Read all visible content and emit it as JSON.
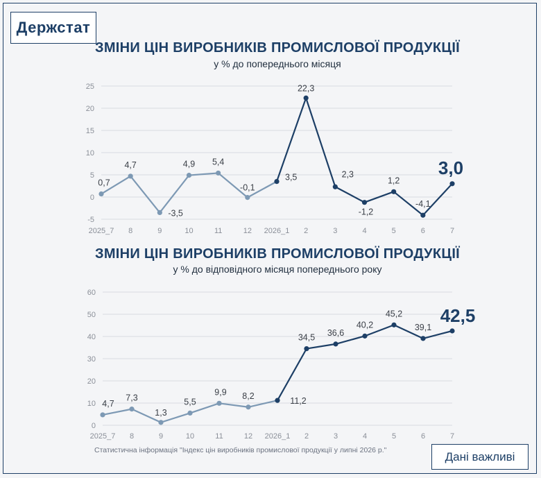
{
  "logo": {
    "text": "Держстат"
  },
  "colors": {
    "past": "#7d99b4",
    "current": "#1d3f66",
    "grid": "#d9dce1"
  },
  "footer": {
    "note": "Статистична інформація \"Індекс цін виробників промислової продукції у липні 2026 р.\"",
    "button_label": "Дані важливі"
  },
  "chart_data": [
    {
      "type": "line",
      "title": "ЗМІНИ ЦІН ВИРОБНИКІВ ПРОМИСЛОВОЇ ПРОДУКЦІЇ",
      "subtitle": "у % до попереднього місяця",
      "categories": [
        "2025_7",
        "8",
        "9",
        "10",
        "11",
        "12",
        "2026_1",
        "2",
        "3",
        "4",
        "5",
        "6",
        "7"
      ],
      "values": [
        0.7,
        4.7,
        -3.5,
        4.9,
        5.4,
        -0.1,
        3.5,
        22.3,
        2.3,
        -1.2,
        1.2,
        -4.1,
        3.0
      ],
      "labels": [
        "0,7",
        "4,7",
        "-3,5",
        "4,9",
        "5,4",
        "-0,1",
        "3,5",
        "22,3",
        "2,3",
        "-1,2",
        "1,2",
        "-4,1",
        "3,0"
      ],
      "yticks": [
        "-5",
        "0",
        "5",
        "10",
        "15",
        "20",
        "25"
      ],
      "ylim": [
        -5,
        25
      ],
      "grid": true,
      "highlight_from_index": 6,
      "xlabel": "",
      "ylabel": ""
    },
    {
      "type": "line",
      "title": "ЗМІНИ ЦІН ВИРОБНИКІВ ПРОМИСЛОВОЇ ПРОДУКЦІЇ",
      "subtitle": "у % до відповідного місяця попереднього року",
      "categories": [
        "2025_7",
        "8",
        "9",
        "10",
        "11",
        "12",
        "2026_1",
        "2",
        "3",
        "4",
        "5",
        "6",
        "7"
      ],
      "values": [
        4.7,
        7.3,
        1.3,
        5.5,
        9.9,
        8.2,
        11.2,
        34.5,
        36.6,
        40.2,
        45.2,
        39.1,
        42.5
      ],
      "labels": [
        "4,7",
        "7,3",
        "1,3",
        "5,5",
        "9,9",
        "8,2",
        "11,2",
        "34,5",
        "36,6",
        "40,2",
        "45,2",
        "39,1",
        "42,5"
      ],
      "yticks": [
        "0",
        "10",
        "20",
        "30",
        "40",
        "50",
        "60"
      ],
      "ylim": [
        0,
        60
      ],
      "grid": true,
      "highlight_from_index": 6,
      "xlabel": "",
      "ylabel": ""
    }
  ]
}
